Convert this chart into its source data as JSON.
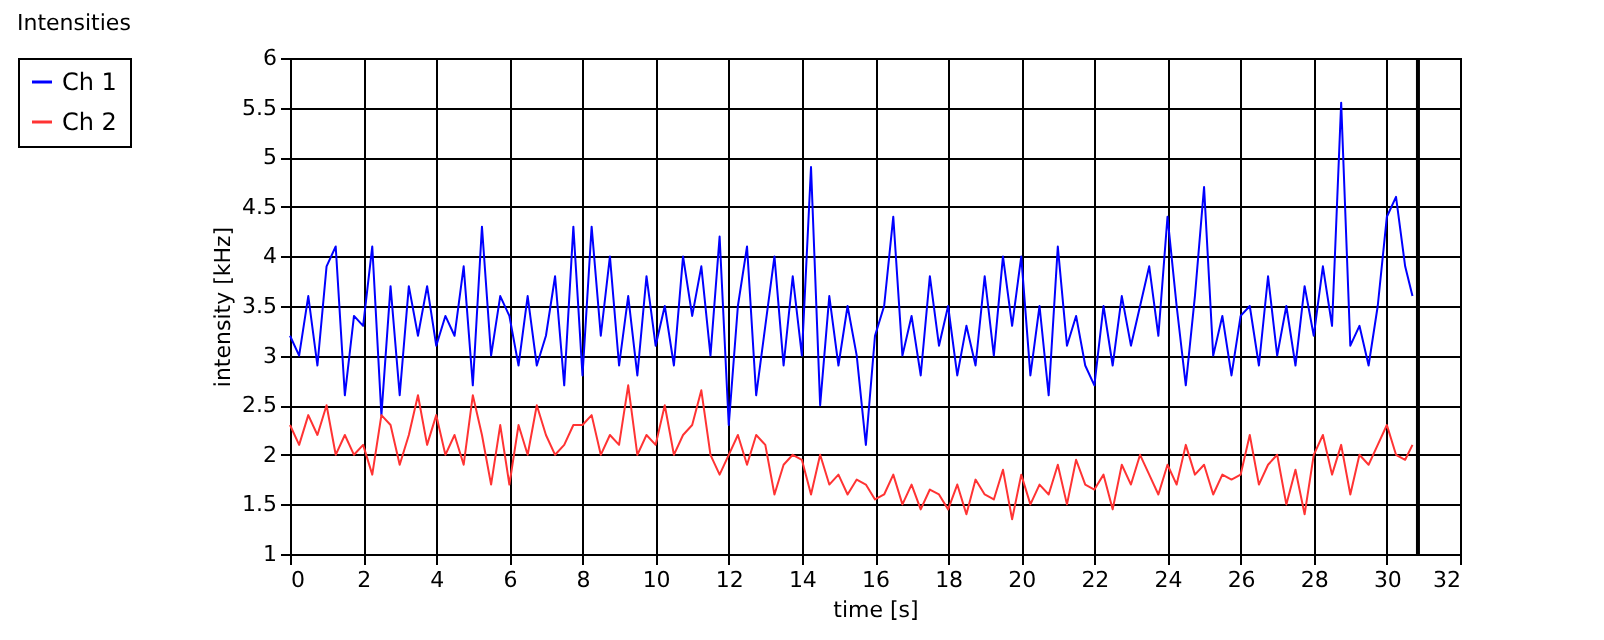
{
  "chart_data": {
    "type": "line",
    "title": "Intensities",
    "xlabel": "time [s]",
    "ylabel": "intensity [kHz]",
    "x": [
      0,
      0.25,
      0.5,
      0.75,
      1,
      1.25,
      1.5,
      1.75,
      2,
      2.25,
      2.5,
      2.75,
      3,
      3.25,
      3.5,
      3.75,
      4,
      4.25,
      4.5,
      4.75,
      5,
      5.25,
      5.5,
      5.75,
      6,
      6.25,
      6.5,
      6.75,
      7,
      7.25,
      7.5,
      7.75,
      8,
      8.25,
      8.5,
      8.75,
      9,
      9.25,
      9.5,
      9.75,
      10,
      10.25,
      10.5,
      10.75,
      11,
      11.25,
      11.5,
      11.75,
      12,
      12.25,
      12.5,
      12.75,
      13,
      13.25,
      13.5,
      13.75,
      14,
      14.25,
      14.5,
      14.75,
      15,
      15.25,
      15.5,
      15.75,
      16,
      16.25,
      16.5,
      16.75,
      17,
      17.25,
      17.5,
      17.75,
      18,
      18.25,
      18.5,
      18.75,
      19,
      19.25,
      19.5,
      19.75,
      20,
      20.25,
      20.5,
      20.75,
      21,
      21.25,
      21.5,
      21.75,
      22,
      22.25,
      22.5,
      22.75,
      23,
      23.25,
      23.5,
      23.75,
      24,
      24.25,
      24.5,
      24.75,
      25,
      25.25,
      25.5,
      25.75,
      26,
      26.25,
      26.5,
      26.75,
      27,
      27.25,
      27.5,
      27.75,
      28,
      28.25,
      28.5,
      28.75,
      29,
      29.25,
      29.5,
      29.75,
      30,
      30.25,
      30.5,
      30.7
    ],
    "series": [
      {
        "name": "Ch 1",
        "color": "#0000ff",
        "values": [
          3.2,
          3.0,
          3.6,
          2.9,
          3.9,
          4.1,
          2.6,
          3.4,
          3.3,
          4.1,
          2.4,
          3.7,
          2.6,
          3.7,
          3.2,
          3.7,
          3.1,
          3.4,
          3.2,
          3.9,
          2.7,
          4.3,
          3.0,
          3.6,
          3.4,
          2.9,
          3.6,
          2.9,
          3.2,
          3.8,
          2.7,
          4.3,
          2.8,
          4.3,
          3.2,
          4.0,
          2.9,
          3.6,
          2.8,
          3.8,
          3.1,
          3.5,
          2.9,
          4.0,
          3.4,
          3.9,
          3.0,
          4.2,
          2.3,
          3.5,
          4.1,
          2.6,
          3.3,
          4.0,
          2.9,
          3.8,
          3.0,
          4.9,
          2.5,
          3.6,
          2.9,
          3.5,
          3.0,
          2.1,
          3.2,
          3.5,
          4.4,
          3.0,
          3.4,
          2.8,
          3.8,
          3.1,
          3.5,
          2.8,
          3.3,
          2.9,
          3.8,
          3.0,
          4.0,
          3.3,
          4.0,
          2.8,
          3.5,
          2.6,
          4.1,
          3.1,
          3.4,
          2.9,
          2.7,
          3.5,
          2.9,
          3.6,
          3.1,
          3.5,
          3.9,
          3.2,
          4.4,
          3.5,
          2.7,
          3.6,
          4.7,
          3.0,
          3.4,
          2.8,
          3.4,
          3.5,
          2.9,
          3.8,
          3.0,
          3.5,
          2.9,
          3.7,
          3.2,
          3.9,
          3.3,
          5.55,
          3.1,
          3.3,
          2.9,
          3.5,
          4.4,
          4.6,
          3.9,
          3.6
        ]
      },
      {
        "name": "Ch 2",
        "color": "#ff3333",
        "values": [
          2.3,
          2.1,
          2.4,
          2.2,
          2.5,
          2.0,
          2.2,
          2.0,
          2.1,
          1.8,
          2.4,
          2.3,
          1.9,
          2.2,
          2.6,
          2.1,
          2.4,
          2.0,
          2.2,
          1.9,
          2.6,
          2.2,
          1.7,
          2.3,
          1.7,
          2.3,
          2.0,
          2.5,
          2.2,
          2.0,
          2.1,
          2.3,
          2.3,
          2.4,
          2.0,
          2.2,
          2.1,
          2.7,
          2.0,
          2.2,
          2.1,
          2.5,
          2.0,
          2.2,
          2.3,
          2.65,
          2.0,
          1.8,
          2.0,
          2.2,
          1.9,
          2.2,
          2.1,
          1.6,
          1.9,
          2.0,
          1.95,
          1.6,
          2.0,
          1.7,
          1.8,
          1.6,
          1.75,
          1.7,
          1.55,
          1.6,
          1.8,
          1.5,
          1.7,
          1.45,
          1.65,
          1.6,
          1.45,
          1.7,
          1.4,
          1.75,
          1.6,
          1.55,
          1.85,
          1.35,
          1.8,
          1.5,
          1.7,
          1.6,
          1.9,
          1.5,
          1.95,
          1.7,
          1.65,
          1.8,
          1.45,
          1.9,
          1.7,
          2.0,
          1.8,
          1.6,
          1.9,
          1.7,
          2.1,
          1.8,
          1.9,
          1.6,
          1.8,
          1.75,
          1.8,
          2.2,
          1.7,
          1.9,
          2.0,
          1.5,
          1.85,
          1.4,
          2.0,
          2.2,
          1.8,
          2.1,
          1.6,
          2.0,
          1.9,
          2.1,
          2.3,
          2.0,
          1.95,
          2.1
        ]
      }
    ],
    "xlim": [
      0,
      32
    ],
    "xticks": [
      0,
      2,
      4,
      6,
      8,
      10,
      12,
      14,
      16,
      18,
      20,
      22,
      24,
      26,
      28,
      30,
      32
    ],
    "ylim": [
      1,
      6
    ],
    "yticks": [
      1,
      1.5,
      2,
      2.5,
      3,
      3.5,
      4,
      4.5,
      5,
      5.5,
      6
    ],
    "ref_lines": [
      {
        "axis": "x",
        "value": 30.85,
        "color": "#000000"
      }
    ],
    "grid": true,
    "legend": "top left",
    "marker": "none",
    "line_style": "solid"
  }
}
